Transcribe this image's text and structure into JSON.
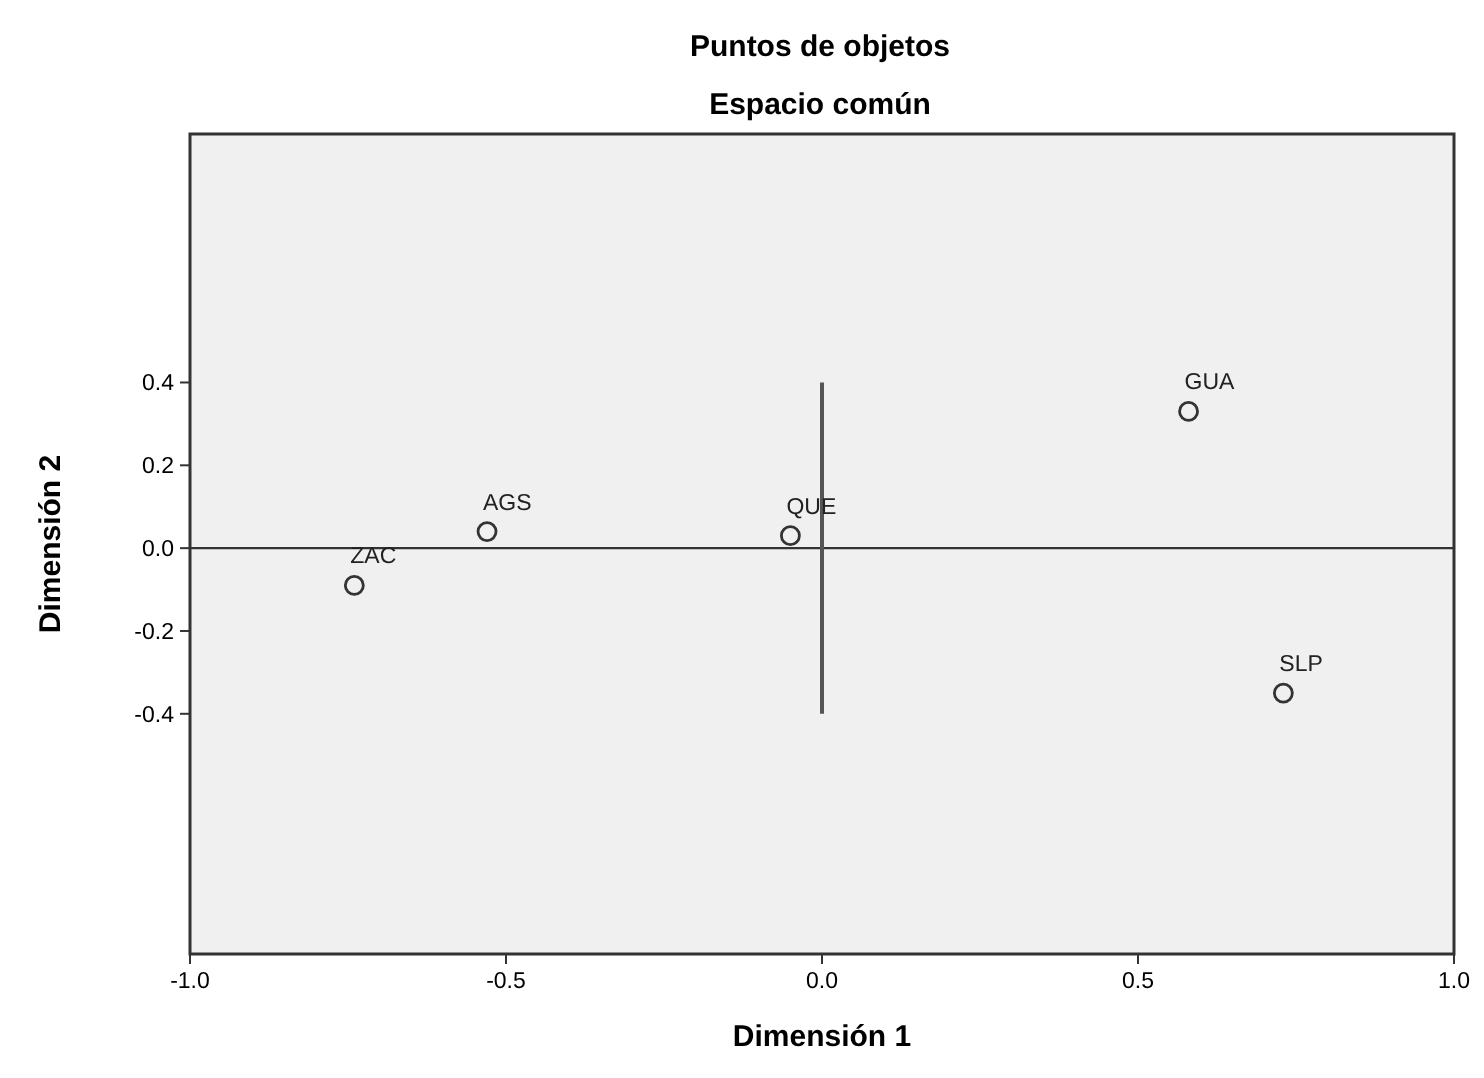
{
  "chart_data": {
    "type": "scatter",
    "title": "Puntos de objetos",
    "subtitle": "Espacio común",
    "xlabel": "Dimensión 1",
    "ylabel": "Dimensión 2",
    "series": [
      {
        "type": "scatter",
        "color": "#333333",
        "marker": "circle",
        "x": [
          0.58,
          0.73,
          -0.05,
          -0.53,
          -0.74
        ],
        "values": [
          0.33,
          -0.35,
          0.03,
          0.04,
          -0.09
        ]
      },
      {
        "type": "line",
        "color": "#555555",
        "marker": "none",
        "line_style": "solid",
        "x": [
          0,
          0
        ],
        "values": [
          -0.4,
          0.4
        ]
      }
    ],
    "annotations": [
      {
        "text": "GUA",
        "x": 0.58,
        "y": 0.33
      },
      {
        "text": "SLP",
        "x": 0.73,
        "y": -0.35
      },
      {
        "text": "QUE",
        "x": -0.05,
        "y": 0.03
      },
      {
        "text": "AGS",
        "x": -0.53,
        "y": 0.04
      },
      {
        "text": "ZAC",
        "x": -0.74,
        "y": -0.09
      }
    ],
    "ref_lines": [
      {
        "axis": "y",
        "value": 0,
        "color": "#333333"
      }
    ],
    "xlim": [
      -1,
      1
    ],
    "xticks": [
      {
        "value": -1,
        "label": "-1.0"
      },
      {
        "value": -0.5,
        "label": "-0.5"
      },
      {
        "value": 0,
        "label": "0.0"
      },
      {
        "value": 0.5,
        "label": "0.5"
      },
      {
        "value": 1,
        "label": "1.0"
      }
    ],
    "ylim": [
      -0.98,
      1
    ],
    "yticks": [
      {
        "value": -0.4,
        "label": "-0.4"
      },
      {
        "value": -0.2,
        "label": "-0.2"
      },
      {
        "value": 0,
        "label": "0.0"
      },
      {
        "value": 0.2,
        "label": "0.2"
      },
      {
        "value": 0.4,
        "label": "0.4"
      }
    ],
    "grid": false
  }
}
